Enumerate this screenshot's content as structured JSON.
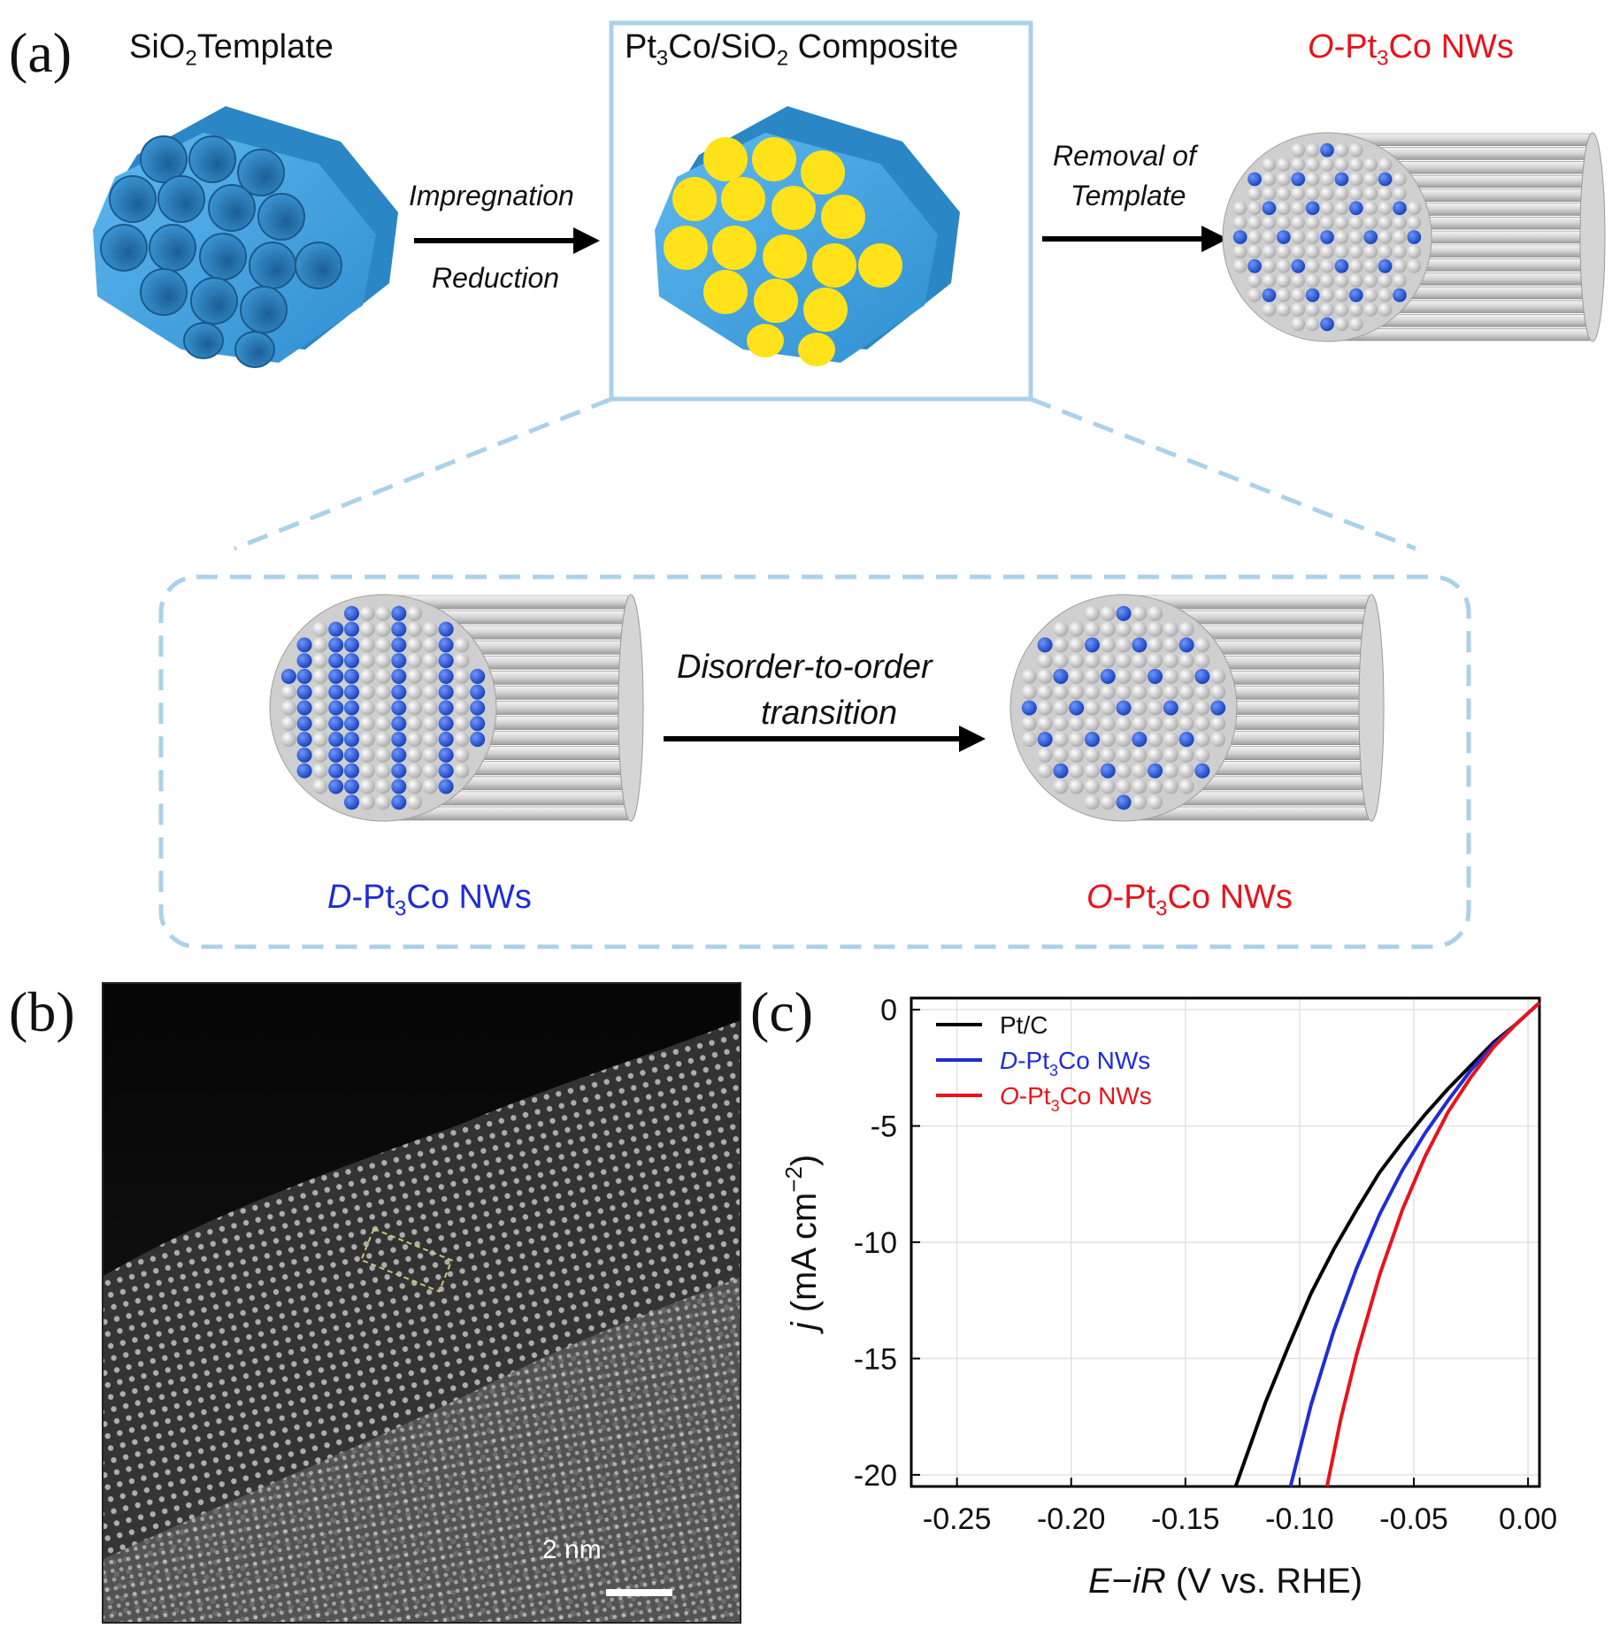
{
  "panel_a": {
    "label": "(a)",
    "template_title": {
      "base": "SiO",
      "sub": "2",
      "rest": "Template"
    },
    "composite_title": {
      "p1": "Pt",
      "s1": "3",
      "p2": "Co/SiO",
      "s2": "2",
      "p3": " Composite"
    },
    "product_title": {
      "italic": "O",
      "p1": "-Pt",
      "s1": "3",
      "p2": "Co NWs"
    },
    "step1_top": "Impregnation",
    "step1_bottom": "Reduction",
    "step2_top": "Removal of",
    "step2_bottom": "Template",
    "inset_step": {
      "line1": "Disorder-to-order",
      "line2": "transition"
    },
    "inset_left_caption": {
      "italic": "D",
      "p1": "-Pt",
      "s1": "3",
      "p2": "Co NWs"
    },
    "inset_right_caption": {
      "italic": "O",
      "p1": "-Pt",
      "s1": "3",
      "p2": "Co NWs"
    },
    "colors": {
      "silica": "#3a9ad6",
      "filled_pore": "#ffe21a",
      "co_atom": "#2f5fd8",
      "pt_atom": "#d9d9d9",
      "frame": "#a9d2ea"
    }
  },
  "panel_b": {
    "label": "(b)",
    "scale_bar": "2 nm"
  },
  "panel_c": {
    "label": "(c)",
    "chart_data": {
      "type": "line",
      "xlabel": {
        "italic1": "E",
        "mid": "−",
        "italic2": "iR",
        "rest": " (V vs. RHE)"
      },
      "ylabel": {
        "italic": "j",
        "rest": " (mA cm",
        "sup": "−2",
        "end": ")"
      },
      "xlim": [
        -0.27,
        0.005
      ],
      "ylim": [
        -20.5,
        0.5
      ],
      "xticks": [
        -0.25,
        -0.2,
        -0.15,
        -0.1,
        -0.05,
        0.0
      ],
      "xtick_labels": [
        "-0.25",
        "-0.20",
        "-0.15",
        "-0.10",
        "-0.05",
        "0.00"
      ],
      "yticks": [
        0,
        -5,
        -10,
        -15,
        -20
      ],
      "ytick_labels": [
        "0",
        "-5",
        "-10",
        "-15",
        "-20"
      ],
      "grid": true,
      "legend_position": "top-left",
      "series": [
        {
          "name": "Pt/C",
          "color": "#000000",
          "x": [
            0.005,
            -0.005,
            -0.015,
            -0.025,
            -0.035,
            -0.045,
            -0.055,
            -0.065,
            -0.075,
            -0.085,
            -0.095,
            -0.105,
            -0.115,
            -0.128
          ],
          "y": [
            0.3,
            -0.6,
            -1.4,
            -2.4,
            -3.4,
            -4.5,
            -5.7,
            -7.0,
            -8.6,
            -10.3,
            -12.2,
            -14.5,
            -16.9,
            -20.5
          ]
        },
        {
          "name": "D-Pt3Co NWs",
          "color": "#1f2cd8",
          "x": [
            0.005,
            -0.005,
            -0.015,
            -0.025,
            -0.035,
            -0.045,
            -0.055,
            -0.065,
            -0.075,
            -0.085,
            -0.095,
            -0.104
          ],
          "y": [
            0.3,
            -0.6,
            -1.5,
            -2.6,
            -3.9,
            -5.3,
            -6.9,
            -8.8,
            -11.1,
            -13.8,
            -17.0,
            -20.5
          ]
        },
        {
          "name": "O-Pt3Co NWs",
          "color": "#e8131b",
          "x": [
            0.005,
            -0.005,
            -0.015,
            -0.025,
            -0.035,
            -0.045,
            -0.055,
            -0.065,
            -0.075,
            -0.082,
            -0.088
          ],
          "y": [
            0.3,
            -0.6,
            -1.6,
            -2.9,
            -4.4,
            -6.3,
            -8.6,
            -11.4,
            -14.8,
            -17.6,
            -20.5
          ]
        }
      ],
      "legend_labels": [
        {
          "text": "Pt/C",
          "color": "#000000"
        },
        {
          "italic": "D",
          "p1": "-Pt",
          "s1": "3",
          "p2": "Co NWs",
          "color": "#1f2cd8"
        },
        {
          "italic": "O",
          "p1": "-Pt",
          "s1": "3",
          "p2": "Co NWs",
          "color": "#e8131b"
        }
      ]
    }
  }
}
